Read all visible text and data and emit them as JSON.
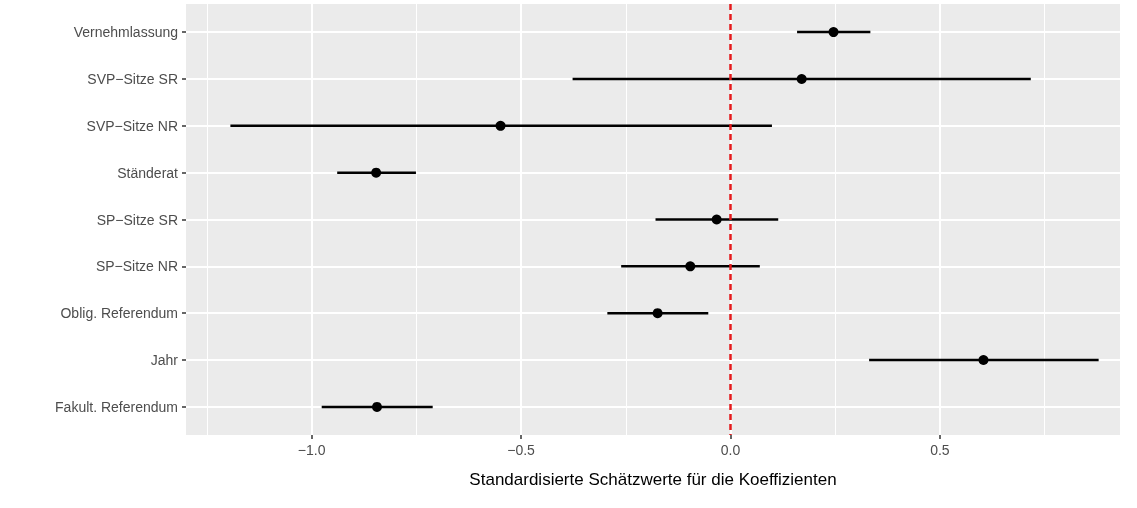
{
  "chart_data": {
    "type": "scatter",
    "orientation": "horizontal",
    "xlabel": "Standardisierte Schätzwerte für die Koeffizienten",
    "categories": [
      "Vernehmlassung",
      "SVP−Sitze SR",
      "SVP−Sitze NR",
      "Ständerat",
      "SP−Sitze SR",
      "SP−Sitze NR",
      "Oblig. Referendum",
      "Jahr",
      "Fakult. Referendum"
    ],
    "values": [
      0.246,
      0.17,
      -0.549,
      -0.846,
      -0.033,
      -0.096,
      -0.174,
      0.604,
      -0.844
    ],
    "errors": [
      [
        0.159,
        0.334
      ],
      [
        -0.377,
        0.717
      ],
      [
        -1.194,
        0.099
      ],
      [
        -0.939,
        -0.751
      ],
      [
        -0.179,
        0.114
      ],
      [
        -0.261,
        0.07
      ],
      [
        -0.294,
        -0.053
      ],
      [
        0.331,
        0.879
      ],
      [
        -0.976,
        -0.711
      ]
    ],
    "color": "#000000",
    "marker": "circle",
    "xlim": [
      -1.3,
      0.93
    ],
    "xticks": [
      {
        "value": -1.25,
        "label": null
      },
      {
        "value": -1.0,
        "label": "−1.0"
      },
      {
        "value": -0.75,
        "label": null
      },
      {
        "value": -0.5,
        "label": "−0.5"
      },
      {
        "value": -0.25,
        "label": null
      },
      {
        "value": 0.0,
        "label": "0.0"
      },
      {
        "value": 0.25,
        "label": null
      },
      {
        "value": 0.5,
        "label": "0.5"
      },
      {
        "value": 0.75,
        "label": null
      }
    ],
    "ref_lines": [
      {
        "axis": "x",
        "value": 0,
        "label": null,
        "color": "#e41a1c",
        "line_style": "dashed"
      }
    ],
    "grid": true
  }
}
